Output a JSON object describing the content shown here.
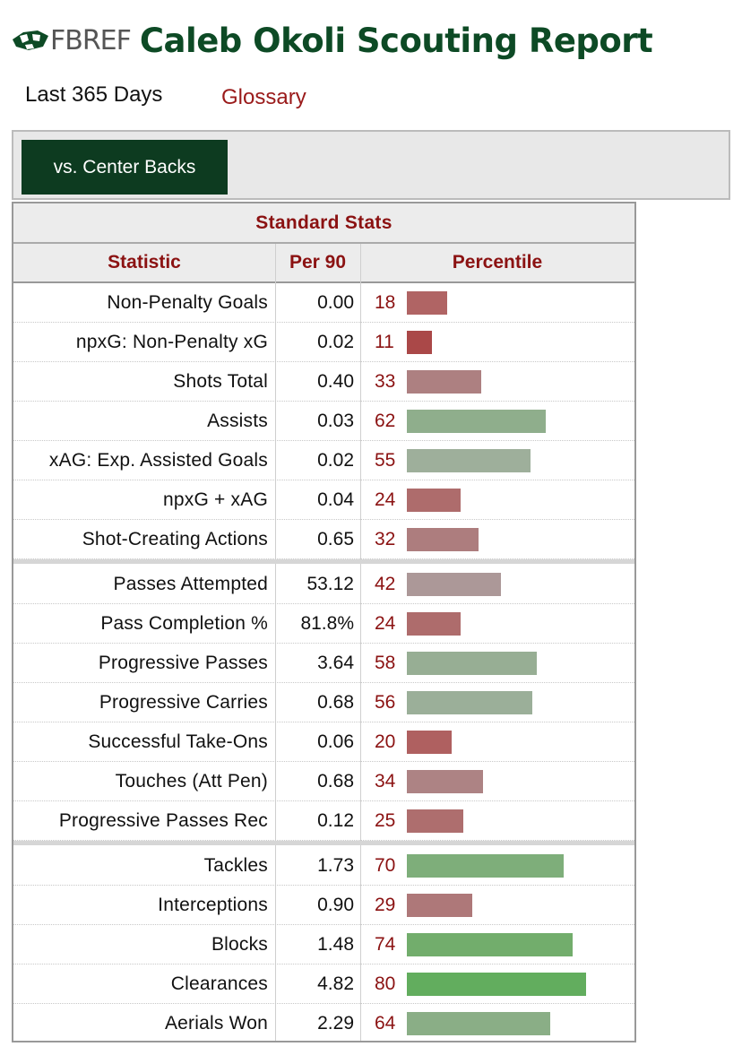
{
  "brand": {
    "logo_text": "FBREF"
  },
  "page": {
    "title": "Caleb Okoli Scouting Report",
    "period": "Last 365 Days",
    "glossary_link": "Glossary"
  },
  "filter": {
    "button_label": "vs. Center Backs"
  },
  "table": {
    "caption": "Standard Stats",
    "headers": {
      "statistic": "Statistic",
      "per90": "Per 90",
      "percentile": "Percentile"
    },
    "groups": [
      [
        {
          "label": "Non-Penalty Goals",
          "per90": "0.00",
          "percentile": 18,
          "bar_color": "#b06464"
        },
        {
          "label": "npxG: Non-Penalty xG",
          "per90": "0.02",
          "percentile": 11,
          "bar_color": "#aa4848"
        },
        {
          "label": "Shots Total",
          "per90": "0.40",
          "percentile": 33,
          "bar_color": "#ad8081"
        },
        {
          "label": "Assists",
          "per90": "0.03",
          "percentile": 62,
          "bar_color": "#8fae8c"
        },
        {
          "label": "xAG: Exp. Assisted Goals",
          "per90": "0.02",
          "percentile": 55,
          "bar_color": "#9eaf9b"
        },
        {
          "label": "npxG + xAG",
          "per90": "0.04",
          "percentile": 24,
          "bar_color": "#ae6c6c"
        },
        {
          "label": "Shot-Creating Actions",
          "per90": "0.65",
          "percentile": 32,
          "bar_color": "#ad7d7e"
        }
      ],
      [
        {
          "label": "Passes Attempted",
          "per90": "53.12",
          "percentile": 42,
          "bar_color": "#ac9898"
        },
        {
          "label": "Pass Completion %",
          "per90": "81.8%",
          "percentile": 24,
          "bar_color": "#ae6c6c"
        },
        {
          "label": "Progressive Passes",
          "per90": "3.64",
          "percentile": 58,
          "bar_color": "#97ae94"
        },
        {
          "label": "Progressive Carries",
          "per90": "0.68",
          "percentile": 56,
          "bar_color": "#9baf99"
        },
        {
          "label": "Successful Take-Ons",
          "per90": "0.06",
          "percentile": 20,
          "bar_color": "#af6060"
        },
        {
          "label": "Touches (Att Pen)",
          "per90": "0.68",
          "percentile": 34,
          "bar_color": "#ad8384"
        },
        {
          "label": "Progressive Passes Rec",
          "per90": "0.12",
          "percentile": 25,
          "bar_color": "#ae6e6e"
        }
      ],
      [
        {
          "label": "Tackles",
          "per90": "1.73",
          "percentile": 70,
          "bar_color": "#7eae7a"
        },
        {
          "label": "Interceptions",
          "per90": "0.90",
          "percentile": 29,
          "bar_color": "#ae7879"
        },
        {
          "label": "Blocks",
          "per90": "1.48",
          "percentile": 74,
          "bar_color": "#72ad6c"
        },
        {
          "label": "Clearances",
          "per90": "4.82",
          "percentile": 80,
          "bar_color": "#62ad5e"
        },
        {
          "label": "Aerials Won",
          "per90": "2.29",
          "percentile": 64,
          "bar_color": "#8aae86"
        }
      ]
    ]
  }
}
